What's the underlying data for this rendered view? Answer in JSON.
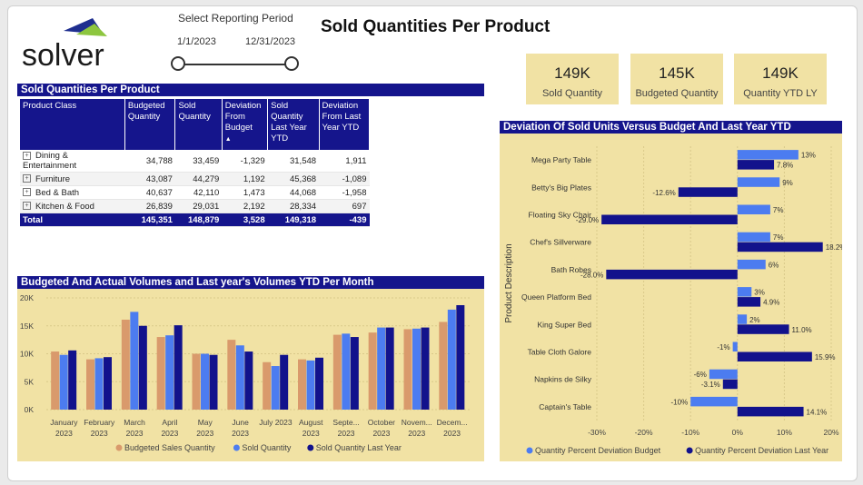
{
  "title": "Sold Quantities Per Product",
  "logo_text": "solver",
  "period": {
    "label": "Select Reporting Period",
    "start": "1/1/2023",
    "end": "12/31/2023"
  },
  "kpis": [
    {
      "value": "149K",
      "label": "Sold Quantity"
    },
    {
      "value": "145K",
      "label": "Budgeted Quantity"
    },
    {
      "value": "149K",
      "label": "Quantity YTD LY"
    }
  ],
  "table": {
    "header": "Sold Quantities Per Product",
    "columns": [
      "Product Class",
      "Budgeted Quantity",
      "Sold Quantity",
      "Deviation From Budget",
      "Sold Quantity Last Year YTD",
      "Deviation From Last Year YTD"
    ],
    "rows": [
      [
        "Dining & Entertainment",
        "34,788",
        "33,459",
        "-1,329",
        "31,548",
        "1,911"
      ],
      [
        "Furniture",
        "43,087",
        "44,279",
        "1,192",
        "45,368",
        "-1,089"
      ],
      [
        "Bed & Bath",
        "40,637",
        "42,110",
        "1,473",
        "44,068",
        "-1,958"
      ],
      [
        "Kitchen & Food",
        "26,839",
        "29,031",
        "2,192",
        "28,334",
        "697"
      ]
    ],
    "total": [
      "Total",
      "145,351",
      "148,879",
      "3,528",
      "149,318",
      "-439"
    ]
  },
  "chart_data": [
    {
      "type": "bar",
      "title": "Budgeted And Actual Volumes and Last year's Volumes YTD Per Month",
      "categories": [
        "January 2023",
        "February 2023",
        "March 2023",
        "April 2023",
        "May 2023",
        "June 2023",
        "July 2023",
        "August 2023",
        "September 2023",
        "October 2023",
        "November 2023",
        "December 2023"
      ],
      "category_lines": [
        [
          "January",
          "2023"
        ],
        [
          "February",
          "2023"
        ],
        [
          "March",
          "2023"
        ],
        [
          "April",
          "2023"
        ],
        [
          "May",
          "2023"
        ],
        [
          "June",
          "2023"
        ],
        [
          "July 2023",
          ""
        ],
        [
          "August",
          "2023"
        ],
        [
          "Septe...",
          "2023"
        ],
        [
          "October",
          "2023"
        ],
        [
          "Novem...",
          "2023"
        ],
        [
          "Decem...",
          "2023"
        ]
      ],
      "series": [
        {
          "name": "Budgeted Sales Quantity",
          "color": "#d99a6c",
          "values": [
            10400,
            9000,
            16100,
            13000,
            10000,
            12500,
            8500,
            9000,
            13400,
            13800,
            14400,
            15700
          ]
        },
        {
          "name": "Sold Quantity",
          "color": "#4c7cf0",
          "values": [
            9800,
            9200,
            17500,
            13300,
            10000,
            11500,
            7800,
            8800,
            13600,
            14700,
            14500,
            17900
          ]
        },
        {
          "name": "Sold Quantity Last Year",
          "color": "#12128c",
          "values": [
            10600,
            9400,
            15000,
            15100,
            9800,
            10400,
            9800,
            9300,
            13000,
            14700,
            14700,
            18700
          ]
        }
      ],
      "ylim": [
        0,
        20000
      ],
      "yticks": [
        "0K",
        "5K",
        "10K",
        "15K",
        "20K"
      ],
      "legend": "bottom"
    },
    {
      "type": "bar",
      "orientation": "horizontal",
      "title": "Deviation Of Sold Units Versus Budget And Last Year YTD",
      "ylabel": "Product Description",
      "categories": [
        "Mega Party Table",
        "Betty's Big Plates",
        "Floating Sky Chair",
        "Chef's Sillverware",
        "Bath Robes",
        "Queen Platform Bed",
        "King Super Bed",
        "Table Cloth Galore",
        "Napkins de Silky",
        "Captain's Table"
      ],
      "series": [
        {
          "name": "Quantity Percent Deviation Budget",
          "color": "#4c7cf0",
          "values": [
            13,
            9,
            7,
            7,
            6,
            3,
            2,
            -1,
            -6,
            -10
          ],
          "labels": [
            "13%",
            "9%",
            "7%",
            "7%",
            "6%",
            "3%",
            "2%",
            "-1%",
            "-6%",
            "-10%"
          ]
        },
        {
          "name": "Quantity Percent Deviation Last Year",
          "color": "#12128c",
          "values": [
            7.8,
            -12.6,
            -29,
            18.2,
            -28,
            4.9,
            11.0,
            15.9,
            -3.1,
            14.1
          ],
          "labels": [
            "7.8%",
            "-12.6%",
            "-29.0%",
            "18.2%",
            "-28.0%",
            "4.9%",
            "11.0%",
            "15.9%",
            "-3.1%",
            "14.1%"
          ]
        }
      ],
      "xlim": [
        -30,
        20
      ],
      "xticks": [
        "-30%",
        "-20%",
        "-10%",
        "0%",
        "10%",
        "20%"
      ],
      "legend": "bottom"
    }
  ]
}
